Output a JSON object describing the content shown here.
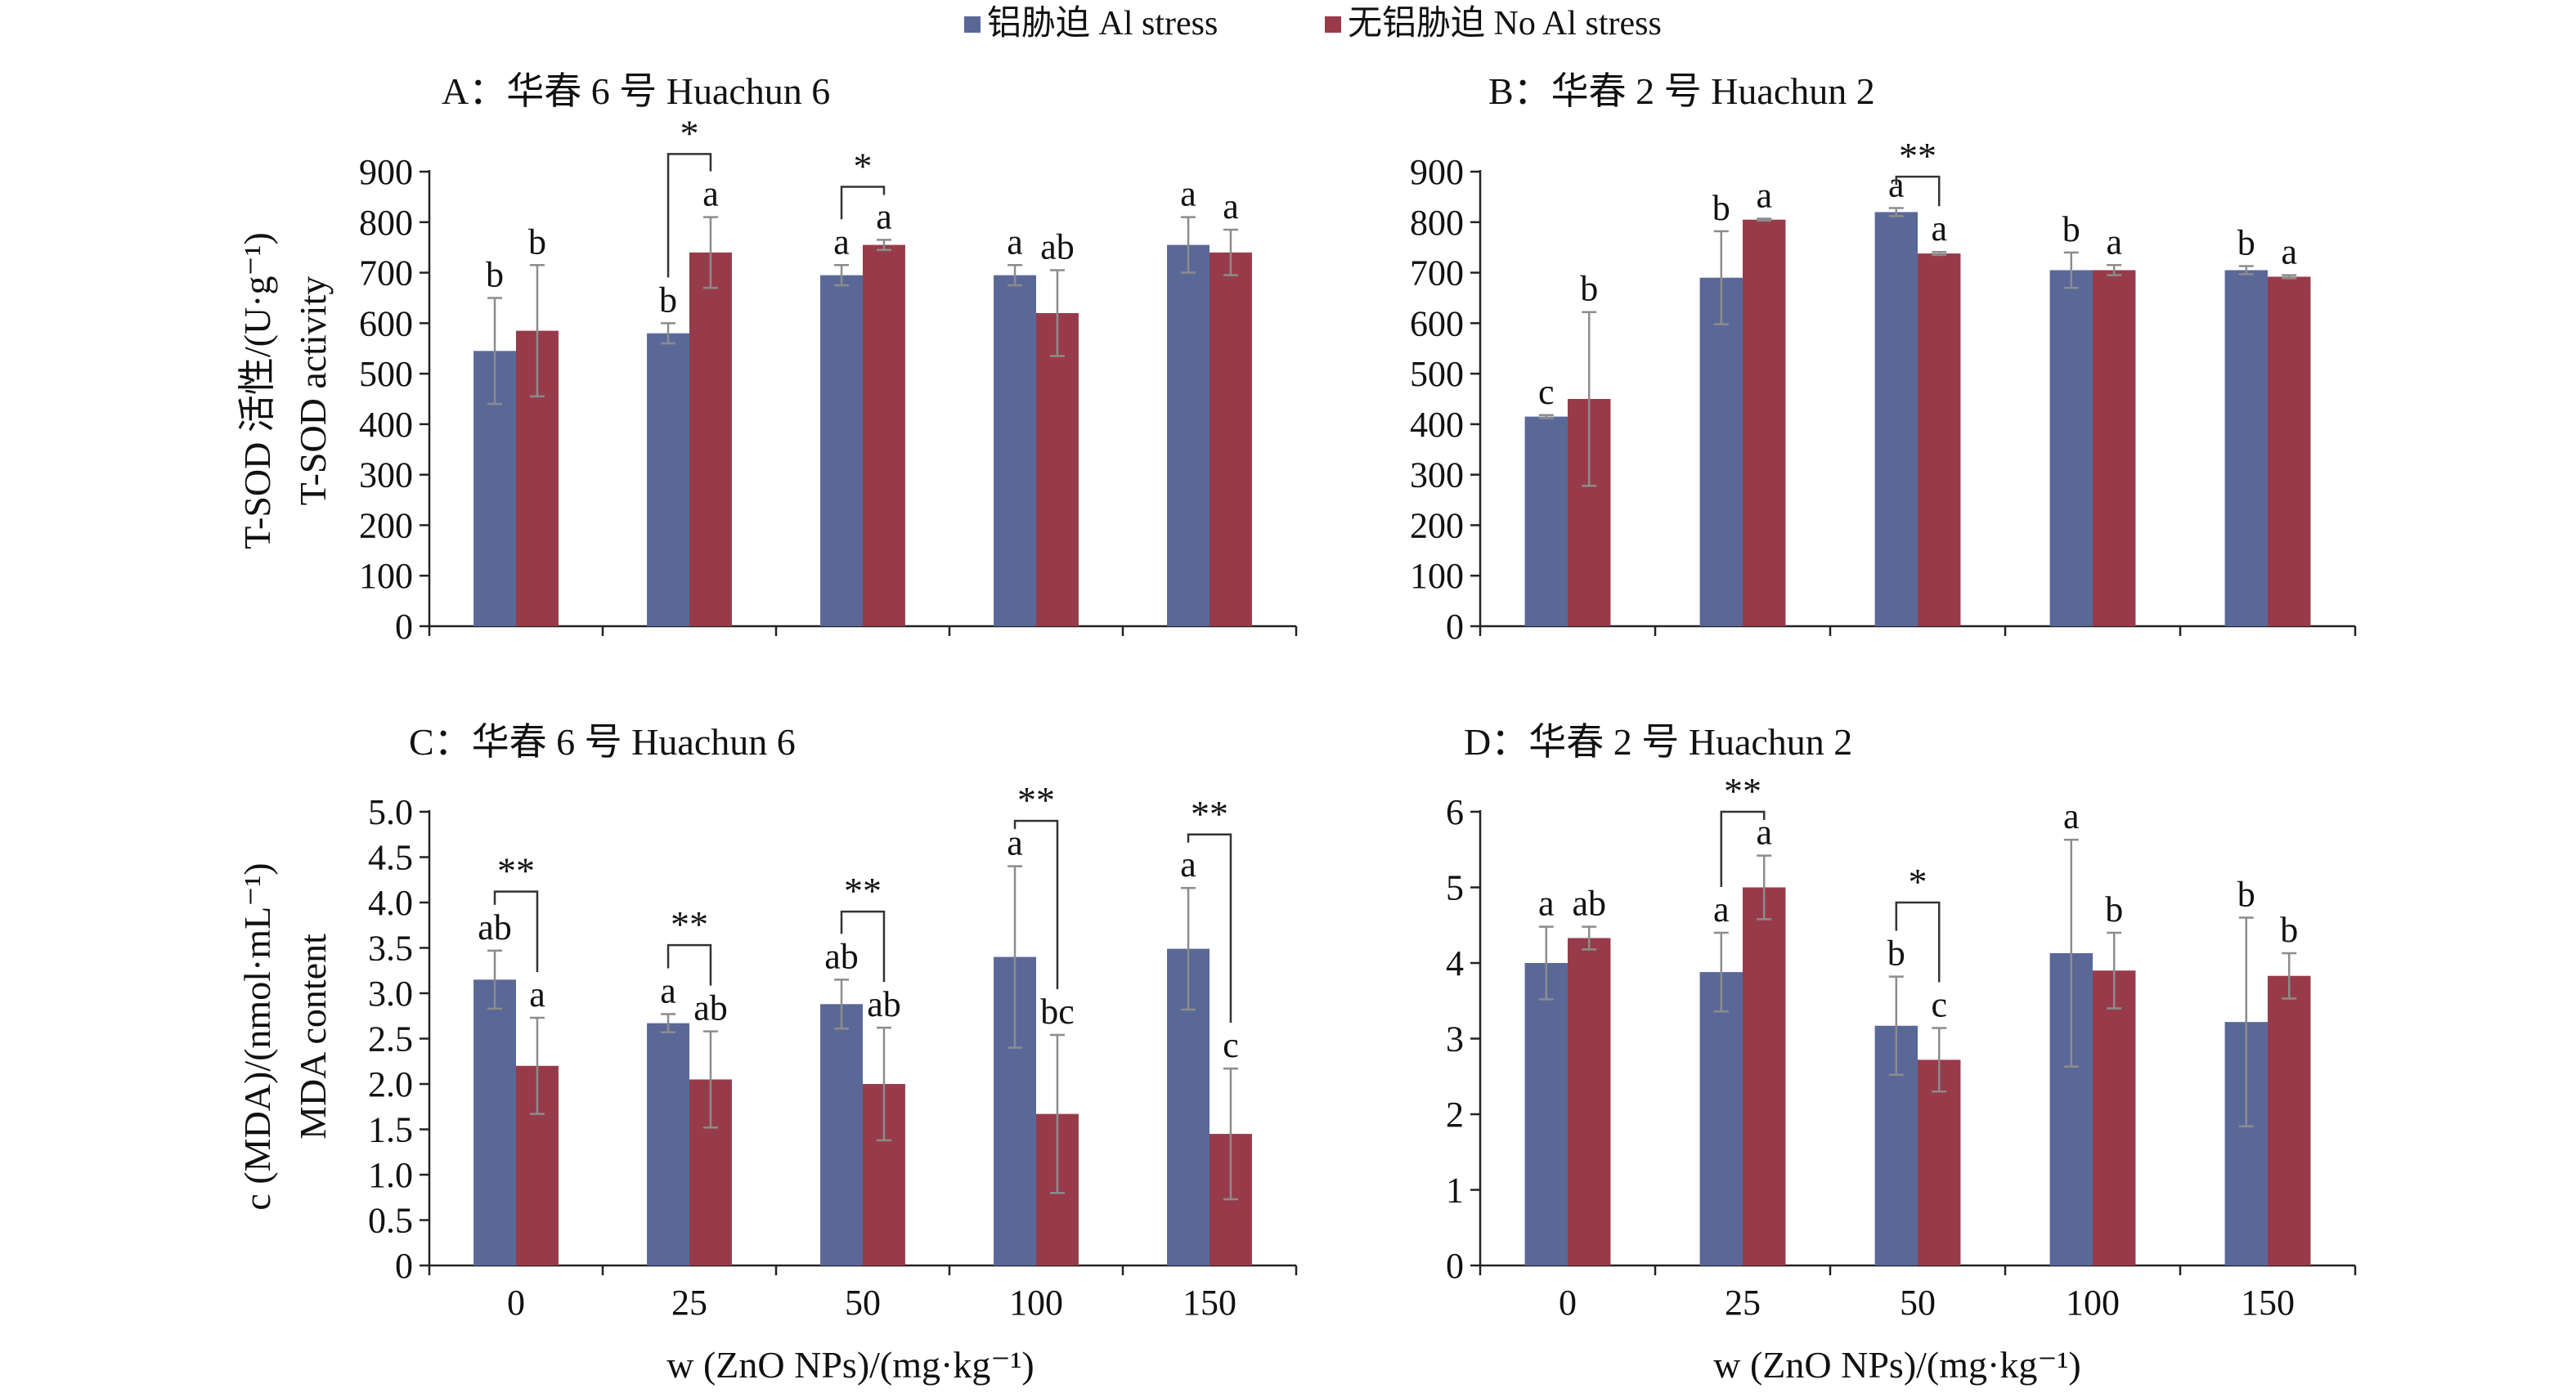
{
  "legend": {
    "placement": "top-center",
    "items": [
      {
        "label": "铝胁迫 Al stress",
        "color": "#5a6898"
      },
      {
        "label": "无铝胁迫 No Al stress",
        "color": "#973b4a"
      }
    ]
  },
  "colors": {
    "al_stress": "#5a6898",
    "no_al_stress": "#973b4a",
    "error_bar": "#8c8c8c",
    "axis": "#222222"
  },
  "chart_data": [
    {
      "id": "A",
      "type": "bar",
      "title": "A：华春 6 号 Huachun 6",
      "ylabel_cn": "T-SOD 活性/(U·g⁻¹)",
      "ylabel_en": "T-SOD activity",
      "xlabel": "",
      "categories": [
        "0",
        "25",
        "50",
        "100",
        "150"
      ],
      "show_x_ticklabels": false,
      "yticks": [
        "0",
        "100",
        "200",
        "300",
        "400",
        "500",
        "600",
        "700",
        "800",
        "900"
      ],
      "ylim": [
        0,
        900
      ],
      "series": [
        {
          "name": "铝胁迫 Al stress",
          "values": [
            545,
            580,
            695,
            695,
            755
          ],
          "errors": [
            105,
            20,
            20,
            20,
            55
          ],
          "letters": [
            "b",
            "b",
            "a",
            "a",
            "a"
          ]
        },
        {
          "name": "无铝胁迫 No Al stress",
          "values": [
            585,
            740,
            755,
            620,
            740
          ],
          "errors": [
            130,
            70,
            10,
            85,
            45
          ],
          "letters": [
            "b",
            "a",
            "a",
            "ab",
            "a"
          ]
        }
      ],
      "significance": [
        {
          "category_index": 1,
          "label": "*",
          "top": 935
        },
        {
          "category_index": 2,
          "label": "*",
          "top": 870
        }
      ]
    },
    {
      "id": "B",
      "type": "bar",
      "title": "B：华春 2 号 Huachun 2",
      "ylabel_cn": "",
      "ylabel_en": "",
      "xlabel": "",
      "categories": [
        "0",
        "25",
        "50",
        "100",
        "150"
      ],
      "show_x_ticklabels": false,
      "yticks": [
        "0",
        "100",
        "200",
        "300",
        "400",
        "500",
        "600",
        "700",
        "800",
        "900"
      ],
      "ylim": [
        0,
        900
      ],
      "series": [
        {
          "name": "铝胁迫 Al stress",
          "values": [
            415,
            690,
            820,
            705,
            705
          ],
          "errors": [
            3,
            92,
            8,
            35,
            8
          ],
          "letters": [
            "c",
            "b",
            "a",
            "b",
            "b"
          ]
        },
        {
          "name": "无铝胁迫 No Al stress",
          "values": [
            450,
            805,
            738,
            705,
            692
          ],
          "errors": [
            172,
            2,
            3,
            10,
            3
          ],
          "letters": [
            "b",
            "a",
            "a",
            "a",
            "a"
          ]
        }
      ],
      "significance": [
        {
          "category_index": 2,
          "label": "**",
          "top": 890
        }
      ]
    },
    {
      "id": "C",
      "type": "bar",
      "title": "C：华春 6 号 Huachun 6",
      "ylabel_cn": "c (MDA)/(nmol·mL⁻¹)",
      "ylabel_en": "MDA content",
      "xlabel": "w (ZnO NPs)/(mg·kg⁻¹)",
      "categories": [
        "0",
        "25",
        "50",
        "100",
        "150"
      ],
      "show_x_ticklabels": true,
      "yticks": [
        "0",
        "0.5",
        "1.0",
        "1.5",
        "2.0",
        "2.5",
        "3.0",
        "3.5",
        "4.0",
        "4.5",
        "5.0"
      ],
      "ylim": [
        0,
        5.0
      ],
      "series": [
        {
          "name": "铝胁迫 Al stress",
          "values": [
            3.15,
            2.67,
            2.88,
            3.4,
            3.49
          ],
          "errors": [
            0.32,
            0.1,
            0.27,
            1.0,
            0.67
          ],
          "letters": [
            "ab",
            "a",
            "ab",
            "a",
            "a"
          ]
        },
        {
          "name": "无铝胁迫 No Al stress",
          "values": [
            2.2,
            2.05,
            2.0,
            1.67,
            1.45
          ],
          "errors": [
            0.53,
            0.53,
            0.62,
            0.87,
            0.72
          ],
          "letters": [
            "a",
            "ab",
            "ab",
            "bc",
            "c"
          ]
        }
      ],
      "significance": [
        {
          "category_index": 0,
          "label": "**",
          "top": 4.12
        },
        {
          "category_index": 1,
          "label": "**",
          "top": 3.53
        },
        {
          "category_index": 2,
          "label": "**",
          "top": 3.9
        },
        {
          "category_index": 3,
          "label": "**",
          "top": 4.9
        },
        {
          "category_index": 4,
          "label": "**",
          "top": 4.75
        }
      ]
    },
    {
      "id": "D",
      "type": "bar",
      "title": "D：华春 2 号 Huachun 2",
      "ylabel_cn": "",
      "ylabel_en": "",
      "xlabel": "w (ZnO NPs)/(mg·kg⁻¹)",
      "categories": [
        "0",
        "25",
        "50",
        "100",
        "150"
      ],
      "show_x_ticklabels": true,
      "yticks": [
        "0",
        "1",
        "2",
        "3",
        "4",
        "5",
        "6"
      ],
      "ylim": [
        0,
        6
      ],
      "series": [
        {
          "name": "铝胁迫 Al stress",
          "values": [
            4.0,
            3.88,
            3.17,
            4.13,
            3.22
          ],
          "errors": [
            0.48,
            0.52,
            0.65,
            1.5,
            1.38
          ],
          "letters": [
            "a",
            "a",
            "b",
            "a",
            "b"
          ]
        },
        {
          "name": "无铝胁迫 No Al stress",
          "values": [
            4.33,
            5.0,
            2.72,
            3.9,
            3.83
          ],
          "errors": [
            0.15,
            0.42,
            0.42,
            0.5,
            0.3
          ],
          "letters": [
            "ab",
            "a",
            "c",
            "b",
            "b"
          ]
        }
      ],
      "significance": [
        {
          "category_index": 1,
          "label": "**",
          "top": 6.0
        },
        {
          "category_index": 2,
          "label": "*",
          "top": 4.8
        }
      ]
    }
  ]
}
